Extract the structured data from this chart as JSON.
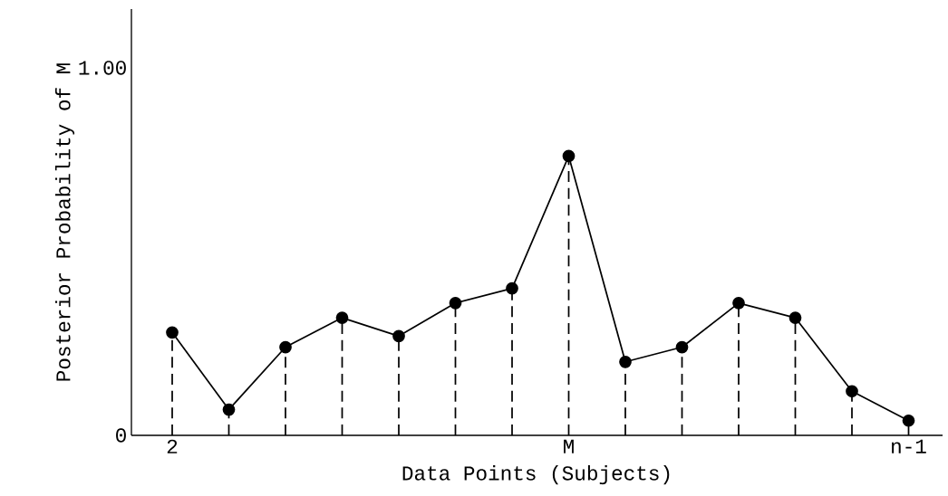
{
  "chart_data": {
    "type": "line",
    "xlabel": "Data Points (Subjects)",
    "ylabel": "Posterior Probability of M",
    "categories": [
      "2",
      null,
      null,
      null,
      null,
      null,
      null,
      "M",
      null,
      null,
      null,
      null,
      null,
      "n-1"
    ],
    "series": [
      {
        "color": "#000000",
        "line_style": "solid",
        "values": [
          0.28,
          0.07,
          0.24,
          0.32,
          0.27,
          0.36,
          0.4,
          0.76,
          0.2,
          0.24,
          0.36,
          0.32,
          0.12,
          0.04
        ]
      },
      {
        "type": "lollipop",
        "color": "#000000",
        "marker": "circle",
        "line_style": "dashed",
        "values": [
          0.28,
          0.07,
          0.24,
          0.32,
          0.27,
          0.36,
          0.4,
          0.76,
          0.2,
          0.24,
          0.36,
          0.32,
          0.12,
          0.04
        ]
      }
    ],
    "ylim": [
      0,
      1.16
    ],
    "yticks": [
      0,
      {
        "value": 1,
        "label": "1.00"
      }
    ]
  }
}
